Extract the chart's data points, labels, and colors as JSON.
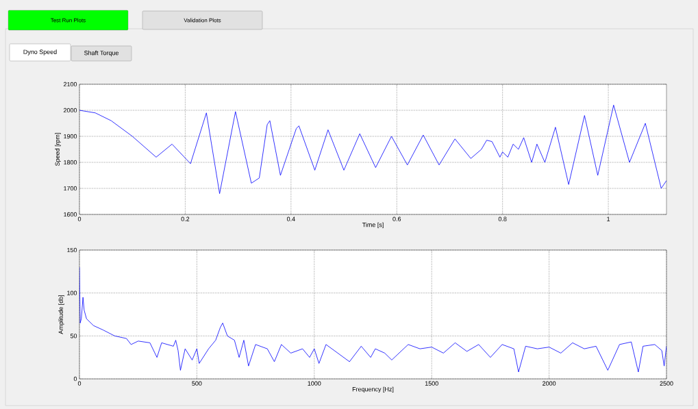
{
  "chart_data": [
    {
      "type": "line",
      "xlabel": "Time [s]",
      "ylabel": "Speed [rpm]",
      "annotations": [
        "Test Run Plots",
        "Validation Plots",
        "Dyno Speed",
        "Shaft Torque"
      ],
      "grid": true,
      "color": "#0000ff",
      "xlim": [
        0,
        1.11
      ],
      "ylim": [
        1600,
        2100
      ],
      "xticks": [
        0,
        0.2,
        0.4,
        0.6,
        0.8,
        1
      ],
      "yticks": [
        1600,
        1700,
        1800,
        1900,
        2000,
        2100
      ],
      "x": [
        0,
        0.03,
        0.06,
        0.1,
        0.145,
        0.175,
        0.21,
        0.24,
        0.265,
        0.295,
        0.325,
        0.34,
        0.355,
        0.36,
        0.38,
        0.41,
        0.415,
        0.445,
        0.47,
        0.5,
        0.53,
        0.56,
        0.59,
        0.62,
        0.65,
        0.68,
        0.71,
        0.74,
        0.76,
        0.77,
        0.78,
        0.795,
        0.8,
        0.81,
        0.82,
        0.83,
        0.84,
        0.855,
        0.865,
        0.88,
        0.9,
        0.925,
        0.955,
        0.98,
        1.01,
        1.04,
        1.07,
        1.1,
        1.11
      ],
      "values": [
        2000,
        1990,
        1960,
        1900,
        1820,
        1870,
        1795,
        1990,
        1680,
        1995,
        1720,
        1740,
        1945,
        1960,
        1750,
        1930,
        1940,
        1770,
        1925,
        1770,
        1910,
        1780,
        1900,
        1790,
        1905,
        1790,
        1890,
        1815,
        1850,
        1885,
        1880,
        1820,
        1840,
        1820,
        1870,
        1850,
        1895,
        1800,
        1870,
        1800,
        1935,
        1715,
        1980,
        1750,
        2020,
        1800,
        1950,
        1700,
        1730
      ]
    },
    {
      "type": "line",
      "xlabel": "Frequency [Hz]",
      "ylabel": "Amplitude [db]",
      "grid": true,
      "color": "#0000ff",
      "xlim": [
        0,
        2500
      ],
      "ylim": [
        0,
        150
      ],
      "xticks": [
        0,
        500,
        1000,
        1500,
        2000,
        2500
      ],
      "yticks": [
        0,
        50,
        100,
        150
      ],
      "x": [
        0,
        3,
        8,
        15,
        20,
        30,
        60,
        100,
        150,
        200,
        220,
        250,
        300,
        330,
        350,
        400,
        410,
        420,
        430,
        450,
        480,
        500,
        510,
        550,
        580,
        600,
        610,
        630,
        660,
        680,
        700,
        720,
        750,
        800,
        830,
        860,
        900,
        950,
        980,
        1000,
        1020,
        1050,
        1100,
        1150,
        1200,
        1240,
        1260,
        1300,
        1330,
        1400,
        1450,
        1500,
        1550,
        1600,
        1650,
        1700,
        1750,
        1800,
        1850,
        1870,
        1900,
        1950,
        2000,
        2050,
        2100,
        2150,
        2200,
        2250,
        2300,
        2350,
        2380,
        2400,
        2450,
        2480,
        2490,
        2500
      ],
      "values": [
        130,
        65,
        70,
        95,
        80,
        70,
        62,
        57,
        50,
        47,
        40,
        44,
        42,
        25,
        42,
        38,
        45,
        33,
        10,
        35,
        22,
        35,
        18,
        35,
        45,
        60,
        65,
        50,
        45,
        25,
        45,
        15,
        40,
        35,
        20,
        40,
        30,
        35,
        25,
        35,
        18,
        40,
        30,
        20,
        38,
        25,
        35,
        30,
        22,
        40,
        35,
        37,
        30,
        42,
        32,
        40,
        25,
        40,
        35,
        8,
        38,
        35,
        37,
        30,
        42,
        35,
        38,
        10,
        40,
        43,
        8,
        38,
        40,
        33,
        15,
        38
      ]
    }
  ]
}
